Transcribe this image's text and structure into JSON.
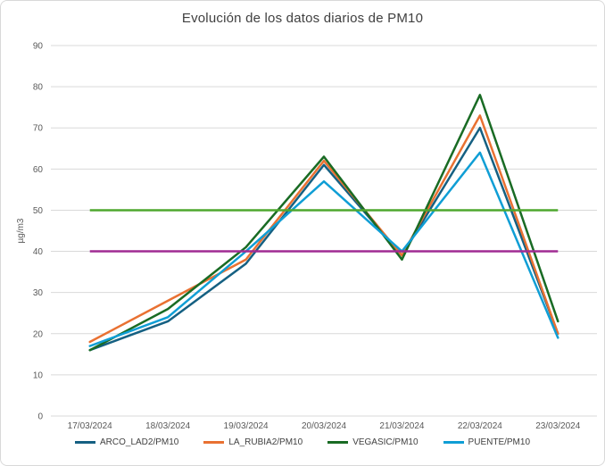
{
  "chart_data": {
    "type": "line",
    "title": "Evolución de los datos diarios de PM10",
    "ylabel": "µg/m3",
    "ylim": [
      0,
      90
    ],
    "yticks": [
      0,
      10,
      20,
      30,
      40,
      50,
      60,
      70,
      80,
      90
    ],
    "grid": true,
    "legend_position": "bottom",
    "categories": [
      "17/03/2024",
      "18/03/2024",
      "19/03/2024",
      "20/03/2024",
      "21/03/2024",
      "22/03/2024",
      "23/03/2024"
    ],
    "series": [
      {
        "name": "ARCO_LAD2/PM10",
        "color": "#156082",
        "values": [
          16,
          23,
          37,
          61,
          39,
          70,
          20
        ]
      },
      {
        "name": "LA_RUBIA2/PM10",
        "color": "#E97132",
        "values": [
          18,
          28,
          38,
          62,
          39,
          73,
          20
        ]
      },
      {
        "name": "VEGASIC/PM10",
        "color": "#196B24",
        "values": [
          16,
          26,
          41,
          63,
          38,
          78,
          23
        ]
      },
      {
        "name": "PUENTE/PM10",
        "color": "#0F9ED5",
        "values": [
          17,
          24,
          40,
          57,
          40,
          64,
          19
        ]
      }
    ],
    "reference_lines": [
      {
        "value": 50,
        "color": "#4EA72E"
      },
      {
        "value": 40,
        "color": "#A02B93"
      }
    ]
  },
  "colors": {
    "grid": "#D9D9D9",
    "axis_text": "#595959",
    "title_text": "#404040",
    "border": "#D9D9D9",
    "background": "#FFFFFF"
  }
}
